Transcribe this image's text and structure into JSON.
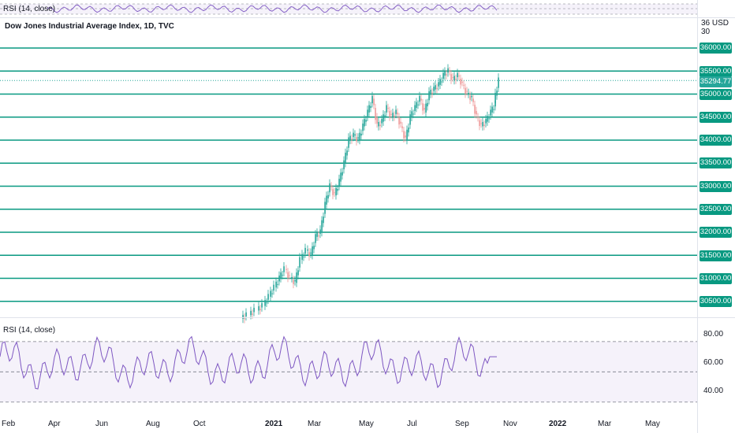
{
  "chart": {
    "symbol_title": "Dow Jones Industrial Average Index, 1D, TVC",
    "currency_label": "36 USD 30",
    "rsi_label": "RSI (14, close)",
    "rsi_top_label": "RSI (14, close)",
    "current_price": "35294.77",
    "accent_color": "#089981",
    "up_color": "#26a69a",
    "down_color": "#ef9a9a",
    "rsi_line_color": "#7e57c2"
  },
  "price_levels": [
    "36000.00",
    "35500.00",
    "35000.00",
    "34500.00",
    "34000.00",
    "33500.00",
    "33000.00",
    "32500.00",
    "32000.00",
    "31500.00",
    "31000.00",
    "30500.00"
  ],
  "rsi_ticks": [
    "80.00",
    "60.00",
    "40.00"
  ],
  "time_ticks": [
    "Feb",
    "Apr",
    "Jun",
    "Aug",
    "Oct",
    "2021",
    "Mar",
    "May",
    "Jul",
    "Sep",
    "Nov",
    "2022",
    "Mar",
    "May"
  ],
  "chart_data": {
    "type": "candlestick",
    "price_levels": [
      36000,
      35500,
      35000,
      34500,
      34000,
      33500,
      33000,
      32500,
      32000,
      31500,
      31000,
      30500
    ],
    "last_close": 35294.77,
    "rsi_bands": [
      70,
      50,
      30
    ],
    "rsi_last": 60
  }
}
